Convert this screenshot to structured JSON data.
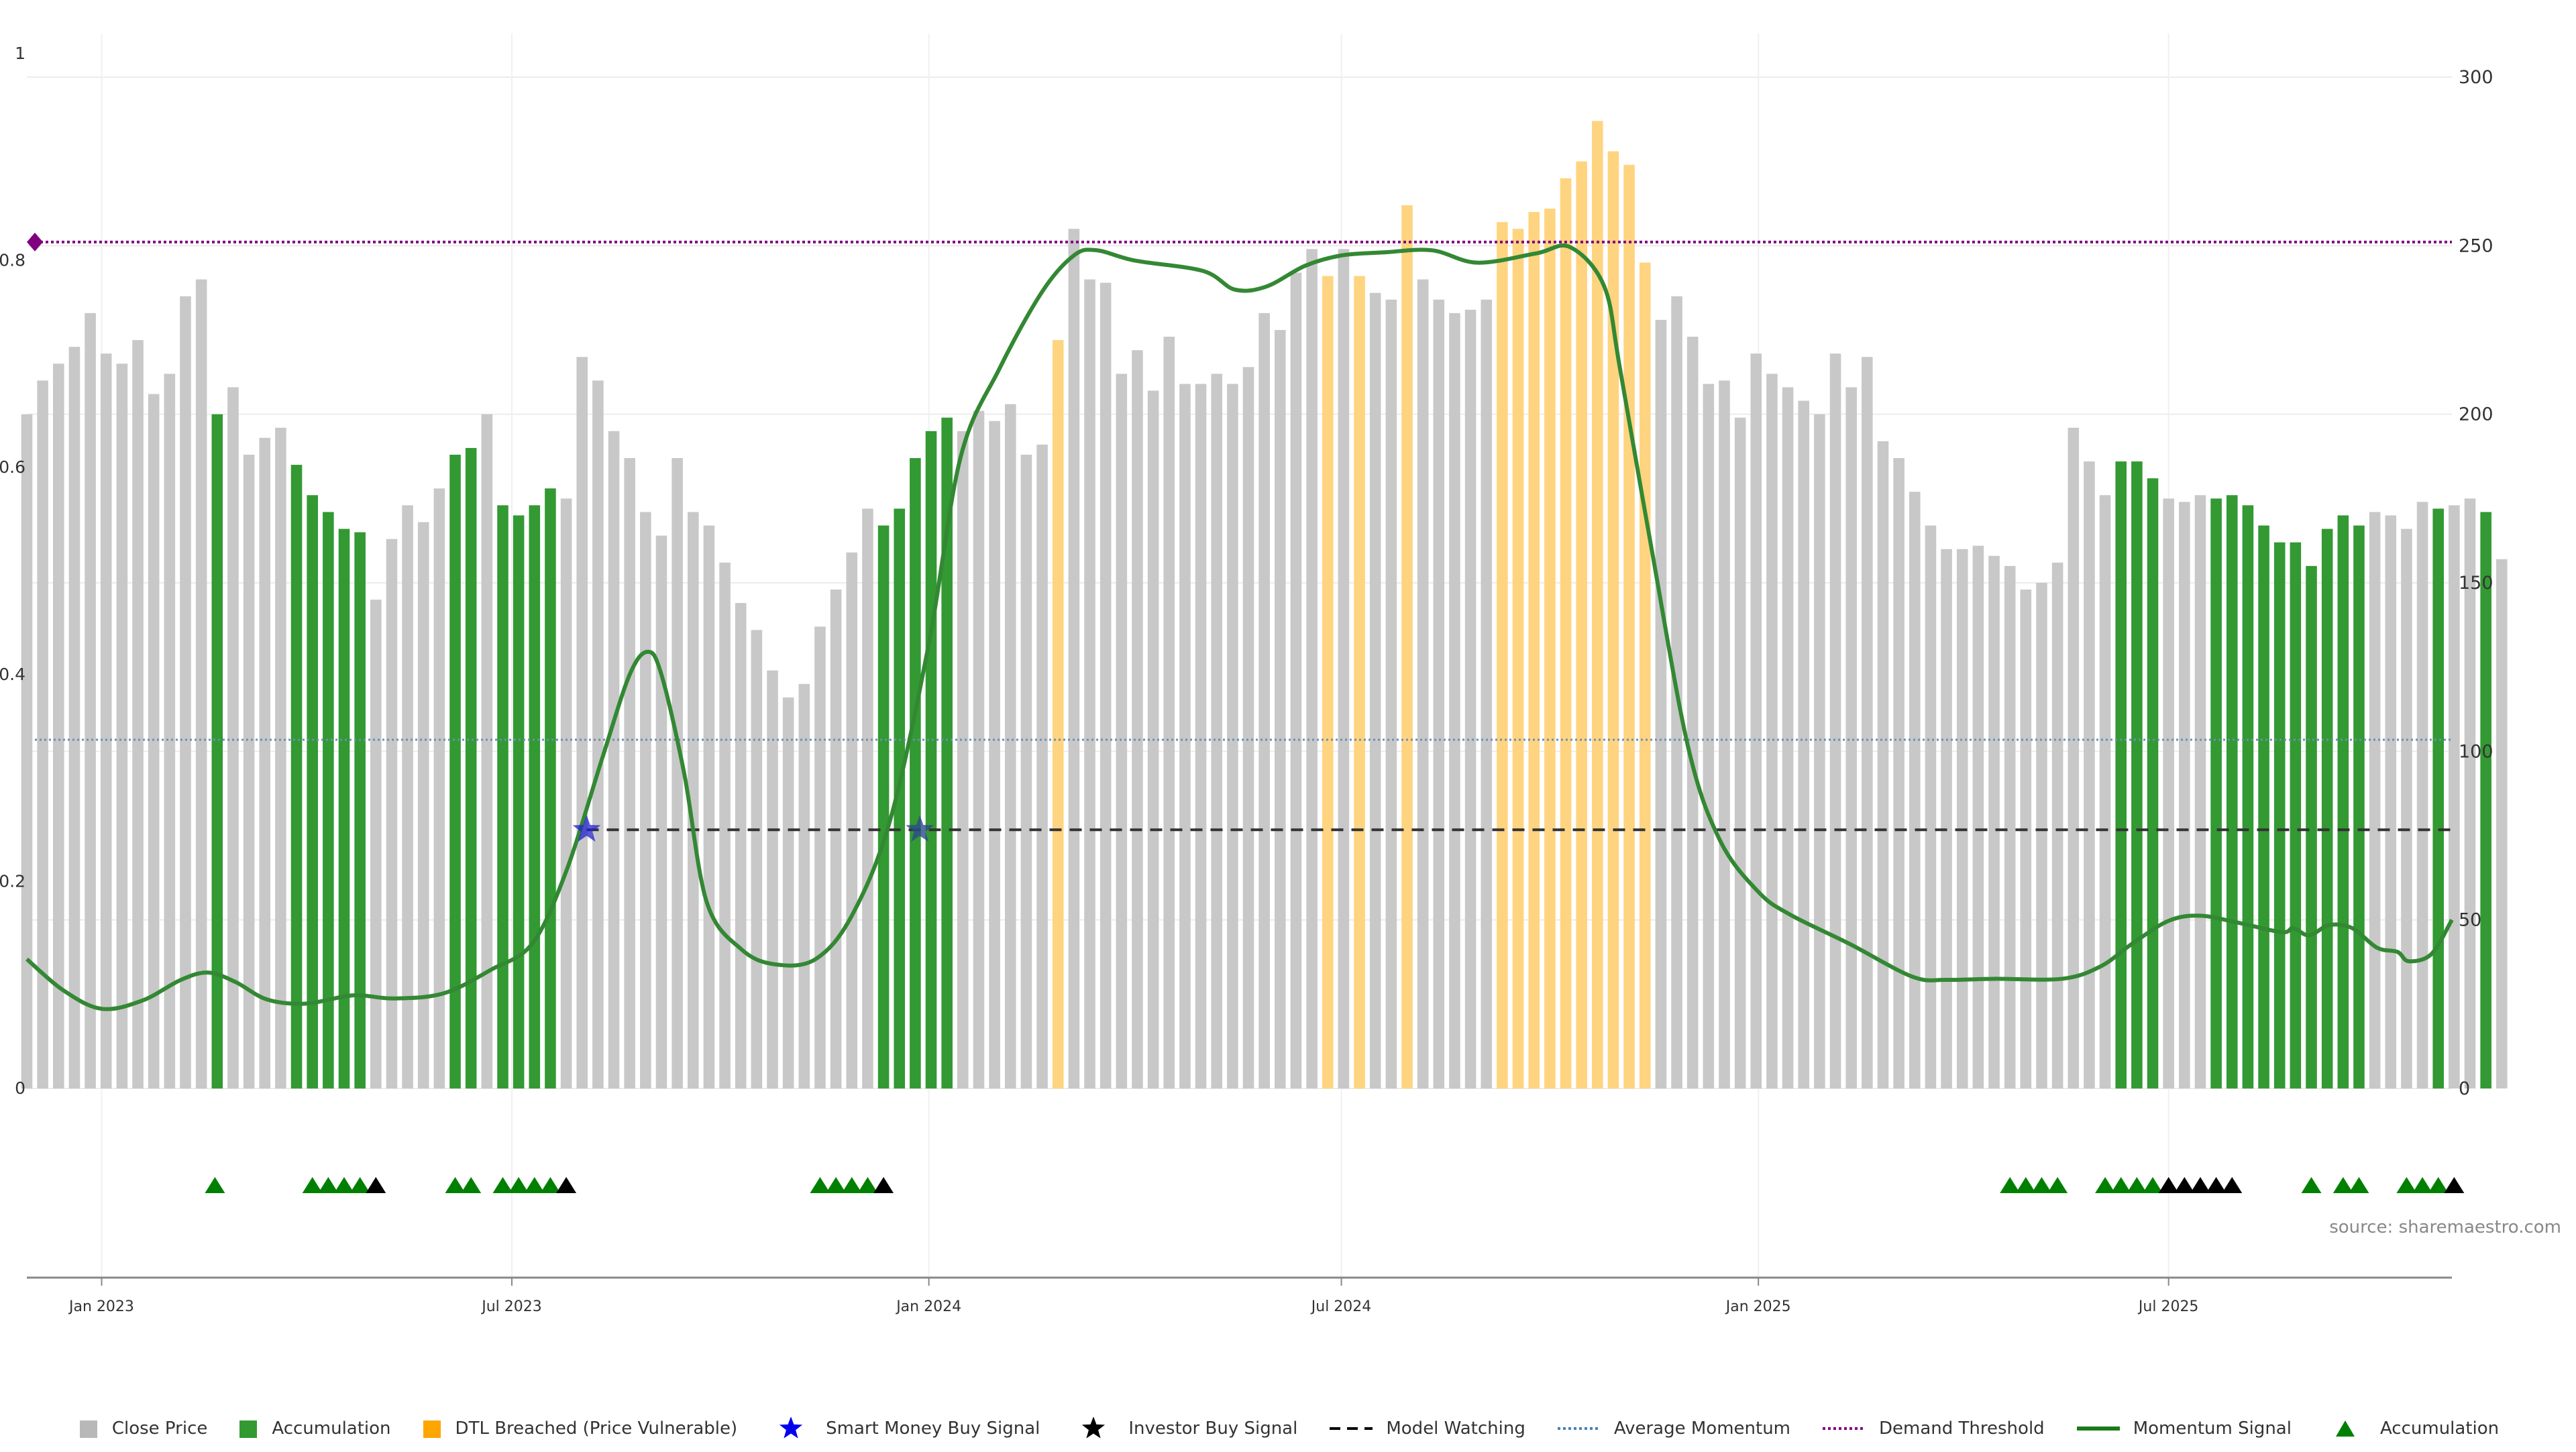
{
  "chart_data": {
    "type": "bar",
    "title": "",
    "xlabel": "",
    "ylabel": "",
    "source": "source: sharemaestro.com",
    "x_axis": {
      "start": "2022-11-29",
      "end": "2025-11-03",
      "ticks": [
        "2023-01-01",
        "2023-07-01",
        "2024-01-01",
        "2024-07-01",
        "2025-01-01",
        "2025-07-01"
      ],
      "tick_labels": [
        "Jan 2023",
        "Jul 2023",
        "Jan 2024",
        "Jul 2024",
        "Jan 2025",
        "Jul 2025"
      ]
    },
    "y_left": {
      "ylim": [
        0,
        1
      ],
      "ticks": [
        0,
        0.2,
        0.4,
        0.6,
        0.8,
        1
      ],
      "tick_labels": [
        "0",
        "0.2",
        "0.4",
        "0.6",
        "0.8",
        "1"
      ]
    },
    "y_right": {
      "ylim": [
        0,
        300
      ],
      "ticks": [
        0,
        50,
        100,
        150,
        200,
        250,
        300
      ],
      "tick_labels": [
        "0",
        "50",
        "100",
        "150",
        "200",
        "250",
        "300"
      ]
    },
    "grid": true,
    "legend_position": "bottom-center",
    "colors": {
      "close": "#c8c8c8",
      "accumulation": "#339933",
      "dtl": "#ffd480",
      "momentum": "#338833",
      "avg_momentum": "#6b8fb3",
      "demand": "#800080",
      "watching": "#333333",
      "smart_money": "#2222cc",
      "investor": "#000000",
      "marker_green": "#008000",
      "marker_black": "#000000"
    },
    "legend": [
      {
        "label": "Close Price",
        "symbol": "square",
        "color": "#b8b8b8"
      },
      {
        "label": "Accumulation",
        "symbol": "square",
        "color": "#339933"
      },
      {
        "label": "DTL Breached (Price Vulnerable)",
        "symbol": "square",
        "color": "#ffa500"
      },
      {
        "label": "Smart Money Buy Signal",
        "symbol": "star",
        "color": "#0000ee"
      },
      {
        "label": "Investor Buy Signal",
        "symbol": "star",
        "color": "#000000"
      },
      {
        "label": "Model Watching",
        "symbol": "dash",
        "color": "#000000"
      },
      {
        "label": "Average Momentum",
        "symbol": "dot",
        "color": "#4682b4"
      },
      {
        "label": "Demand Threshold",
        "symbol": "dot",
        "color": "#800080"
      },
      {
        "label": "Momentum Signal",
        "symbol": "line",
        "color": "#1a7a1a"
      },
      {
        "label": "Accumulation",
        "symbol": "triangle",
        "color": "#008000"
      }
    ],
    "bar_series": {
      "name": "Close Price",
      "start_date": "2022-11-29",
      "step_days": 7,
      "values": [
        200,
        210,
        215,
        220,
        230,
        218,
        215,
        222,
        206,
        212,
        235,
        240,
        200,
        208,
        188,
        193,
        196,
        185,
        176,
        171,
        166,
        165,
        145,
        163,
        173,
        168,
        178,
        188,
        190,
        200,
        173,
        170,
        173,
        178,
        175,
        217,
        210,
        195,
        187,
        171,
        164,
        187,
        171,
        167,
        156,
        144,
        136,
        124,
        116,
        120,
        137,
        148,
        159,
        172,
        167,
        172,
        187,
        195,
        199,
        195,
        201,
        198,
        203,
        188,
        191,
        222,
        255,
        240,
        239,
        212,
        219,
        207,
        223,
        209,
        209,
        212,
        209,
        214,
        230,
        225,
        242,
        249,
        241,
        249,
        241,
        236,
        234,
        262,
        240,
        234,
        230,
        231,
        234,
        257,
        255,
        260,
        261,
        270,
        275,
        287,
        278,
        274,
        245,
        228,
        235,
        223,
        209,
        210,
        199,
        218,
        212,
        208,
        204,
        200,
        218,
        208,
        217,
        192,
        187,
        177,
        167,
        160,
        160,
        161,
        158,
        155,
        148,
        150,
        156,
        196,
        186,
        176,
        186,
        186,
        181,
        175,
        174,
        176,
        175,
        176,
        173,
        167,
        162,
        162,
        155,
        166,
        170,
        167,
        171,
        170,
        166,
        174,
        172,
        173,
        175,
        171,
        157
      ],
      "kind": "ccccccccccccaccccaaaaacccccaacaaaaccccccccccccccccccccaaaaaccccccdccccccccccccccccdcdccdcccccddddddddddcccccccccccccccccccccccccccccaaacccaaaaaaaaaaccccaccacccccaaaaaa"
    },
    "momentum_signal": {
      "name": "Momentum Signal",
      "points": [
        [
          "2022-11-29",
          0.125
        ],
        [
          "2022-12-15",
          0.095
        ],
        [
          "2023-01-01",
          0.077
        ],
        [
          "2023-01-19",
          0.085
        ],
        [
          "2023-02-05",
          0.105
        ],
        [
          "2023-02-17",
          0.112
        ],
        [
          "2023-03-01",
          0.103
        ],
        [
          "2023-03-15",
          0.086
        ],
        [
          "2023-04-01",
          0.082
        ],
        [
          "2023-04-22",
          0.09
        ],
        [
          "2023-05-10",
          0.087
        ],
        [
          "2023-06-01",
          0.092
        ],
        [
          "2023-06-22",
          0.115
        ],
        [
          "2023-07-10",
          0.14
        ],
        [
          "2023-07-25",
          0.21
        ],
        [
          "2023-08-10",
          0.32
        ],
        [
          "2023-08-22",
          0.4
        ],
        [
          "2023-08-30",
          0.422
        ],
        [
          "2023-09-05",
          0.4
        ],
        [
          "2023-09-15",
          0.305
        ],
        [
          "2023-09-25",
          0.18
        ],
        [
          "2023-10-10",
          0.135
        ],
        [
          "2023-10-25",
          0.12
        ],
        [
          "2023-11-12",
          0.125
        ],
        [
          "2023-11-28",
          0.167
        ],
        [
          "2023-12-15",
          0.26
        ],
        [
          "2024-01-01",
          0.43
        ],
        [
          "2024-01-15",
          0.61
        ],
        [
          "2024-02-01",
          0.695
        ],
        [
          "2024-02-20",
          0.77
        ],
        [
          "2024-03-05",
          0.805
        ],
        [
          "2024-03-15",
          0.81
        ],
        [
          "2024-04-01",
          0.8
        ],
        [
          "2024-05-01",
          0.79
        ],
        [
          "2024-05-15",
          0.772
        ],
        [
          "2024-05-29",
          0.775
        ],
        [
          "2024-06-15",
          0.795
        ],
        [
          "2024-07-01",
          0.805
        ],
        [
          "2024-07-20",
          0.808
        ],
        [
          "2024-08-10",
          0.81
        ],
        [
          "2024-08-30",
          0.798
        ],
        [
          "2024-09-25",
          0.807
        ],
        [
          "2024-10-10",
          0.813
        ],
        [
          "2024-10-25",
          0.775
        ],
        [
          "2024-11-01",
          0.695
        ],
        [
          "2024-11-15",
          0.52
        ],
        [
          "2024-12-01",
          0.33
        ],
        [
          "2024-12-15",
          0.24
        ],
        [
          "2025-01-01",
          0.19
        ],
        [
          "2025-01-15",
          0.168
        ],
        [
          "2025-02-10",
          0.14
        ],
        [
          "2025-03-10",
          0.108
        ],
        [
          "2025-03-25",
          0.105
        ],
        [
          "2025-04-15",
          0.106
        ],
        [
          "2025-05-15",
          0.106
        ],
        [
          "2025-06-01",
          0.118
        ],
        [
          "2025-06-15",
          0.14
        ],
        [
          "2025-07-01",
          0.162
        ],
        [
          "2025-07-15",
          0.167
        ],
        [
          "2025-08-01",
          0.16
        ],
        [
          "2025-08-20",
          0.151
        ],
        [
          "2025-08-25",
          0.155
        ],
        [
          "2025-09-01",
          0.148
        ],
        [
          "2025-09-10",
          0.158
        ],
        [
          "2025-09-20",
          0.155
        ],
        [
          "2025-10-01",
          0.136
        ],
        [
          "2025-10-10",
          0.132
        ],
        [
          "2025-10-15",
          0.123
        ],
        [
          "2025-10-25",
          0.13
        ],
        [
          "2025-11-03",
          0.163
        ]
      ]
    },
    "average_momentum": {
      "name": "Average Momentum",
      "value": 0.337
    },
    "demand_threshold": {
      "name": "Demand Threshold",
      "value": 0.818
    },
    "model_watching": {
      "name": "Model Watching",
      "start": "2023-08-03",
      "end": "2025-11-03",
      "value": 0.25
    },
    "smart_money_signals": [
      {
        "date": "2023-08-03",
        "value": 0.25
      }
    ],
    "investor_signals": [
      {
        "date": "2023-12-28",
        "value": 0.25
      }
    ],
    "accumulation_markers": {
      "green": [
        "2023-02-20",
        "2023-04-04",
        "2023-04-11",
        "2023-04-18",
        "2023-04-25",
        "2023-06-06",
        "2023-06-13",
        "2023-06-27",
        "2023-07-04",
        "2023-07-11",
        "2023-07-18",
        "2023-11-14",
        "2023-11-21",
        "2023-11-28",
        "2023-12-05",
        "2025-04-22",
        "2025-04-29",
        "2025-05-06",
        "2025-05-13",
        "2025-06-03",
        "2025-06-10",
        "2025-06-17",
        "2025-06-24",
        "2025-09-02",
        "2025-09-16",
        "2025-09-23",
        "2025-10-14",
        "2025-10-21",
        "2025-10-28"
      ],
      "black": [
        "2023-05-02",
        "2023-07-25",
        "2023-12-12",
        "2025-07-01",
        "2025-07-08",
        "2025-07-15",
        "2025-07-22",
        "2025-07-29",
        "2025-11-04"
      ]
    },
    "demand_marker": {
      "date": "2022-11-29",
      "value": 0.818
    }
  }
}
